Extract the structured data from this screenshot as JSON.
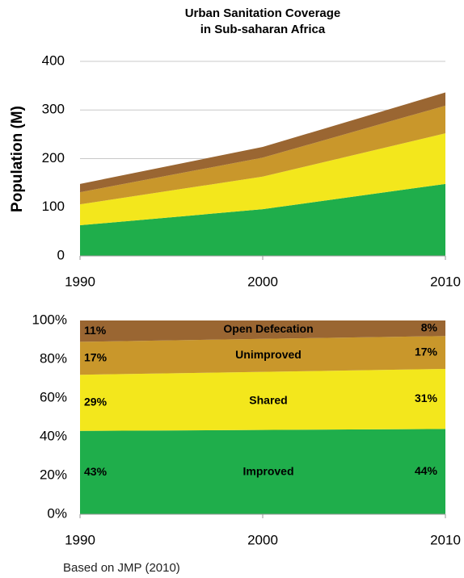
{
  "chart_data": [
    {
      "type": "stacked_area",
      "title": [
        "Urban Sanitation Coverage",
        "in Sub-saharan Africa"
      ],
      "y_label": "Population (M)",
      "x": [
        1990,
        2000,
        2010
      ],
      "xlim": [
        1990,
        2010
      ],
      "xticks": [
        1990,
        2000,
        2010
      ],
      "ylim": [
        0,
        400
      ],
      "yticks": [
        0,
        100,
        200,
        300,
        400
      ],
      "grid": true,
      "series": [
        {
          "color": "#1fae4b",
          "values": [
            63,
            96,
            148
          ]
        },
        {
          "color": "#f3e71c",
          "values": [
            43,
            67,
            104
          ]
        },
        {
          "color": "#c9972b",
          "values": [
            25,
            39,
            57
          ]
        },
        {
          "color": "#9a6632",
          "values": [
            17,
            22,
            27
          ]
        }
      ]
    },
    {
      "type": "stacked_area_percent",
      "x": [
        1990,
        2010
      ],
      "xlim": [
        1990,
        2010
      ],
      "xticks": [
        1990,
        2000,
        2010
      ],
      "ylim": [
        0,
        100
      ],
      "yticks": [
        {
          "value": 0,
          "label": "0%"
        },
        {
          "value": 20,
          "label": "20%"
        },
        {
          "value": 40,
          "label": "40%"
        },
        {
          "value": 60,
          "label": "60%"
        },
        {
          "value": 80,
          "label": "80%"
        },
        {
          "value": 100,
          "label": "100%"
        }
      ],
      "series": [
        {
          "name": "Improved",
          "color": "#1fae4b",
          "label_color": "#ffffff",
          "values": [
            43,
            44
          ],
          "value_labels": [
            "43%",
            "44%"
          ]
        },
        {
          "name": "Shared",
          "color": "#f3e71c",
          "label_color": "#000000",
          "values": [
            29,
            31
          ],
          "value_labels": [
            "29%",
            "31%"
          ]
        },
        {
          "name": "Unimproved",
          "color": "#c9972b",
          "label_color": "#ffffff",
          "values": [
            17,
            17
          ],
          "value_labels": [
            "17%",
            "17%"
          ]
        },
        {
          "name": "Open Defecation",
          "color": "#9a6632",
          "label_color": "#ffffff",
          "values": [
            11,
            8
          ],
          "value_labels": [
            "11%",
            "8%"
          ]
        }
      ]
    }
  ],
  "source": "Based on JMP (2010)"
}
